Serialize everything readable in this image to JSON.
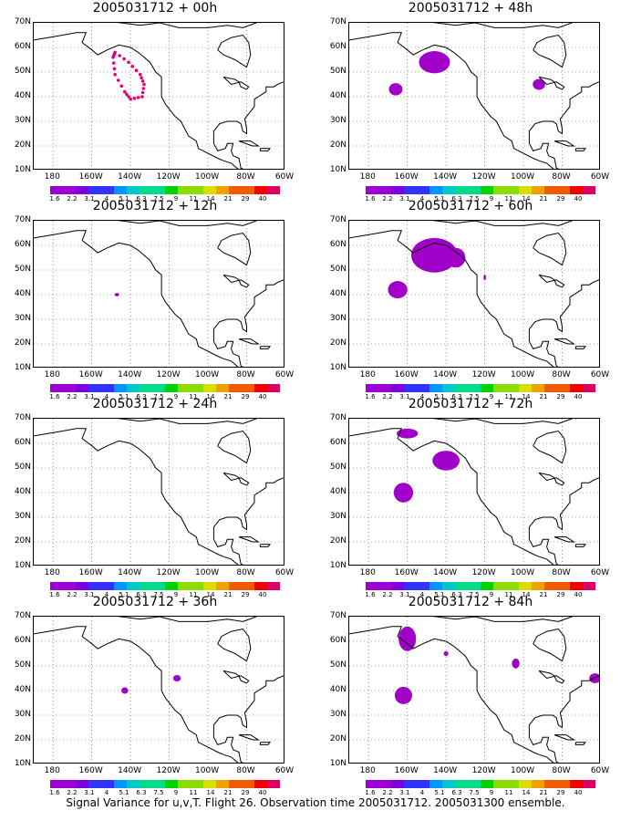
{
  "caption": "Signal Variance for u,v,T. Flight 26. Observation time 2005031712. 2005031300 ensemble.",
  "panels": [
    {
      "title": "2005031712 + 00h"
    },
    {
      "title": "2005031712 + 48h"
    },
    {
      "title": "2005031712 + 12h"
    },
    {
      "title": "2005031712 + 60h"
    },
    {
      "title": "2005031712 + 24h"
    },
    {
      "title": "2005031712 + 72h"
    },
    {
      "title": "2005031712 + 36h"
    },
    {
      "title": "2005031712 + 84h"
    }
  ],
  "axes": {
    "lat_labels": [
      "70N",
      "60N",
      "50N",
      "40N",
      "30N",
      "20N",
      "10N"
    ],
    "lon_labels": [
      "180",
      "160W",
      "140W",
      "120W",
      "100W",
      "80W",
      "60W"
    ],
    "lat_range": [
      10,
      70
    ],
    "lon_range": [
      -190,
      -60
    ]
  },
  "colorbar": {
    "labels": [
      "1.6",
      "2.2",
      "3.1",
      "4",
      "5.1",
      "6.3",
      "7.5",
      "9",
      "11",
      "14",
      "21",
      "29",
      "40"
    ],
    "colors": [
      "#9c00d4",
      "#7a00e0",
      "#3232ff",
      "#0096ff",
      "#00c8c8",
      "#00dc8c",
      "#00d200",
      "#8cdc00",
      "#dcdc00",
      "#f0a000",
      "#f05a00",
      "#f00000",
      "#dc0064"
    ]
  },
  "fill_color": "#a000c8",
  "observation_color": "#e6006e"
}
